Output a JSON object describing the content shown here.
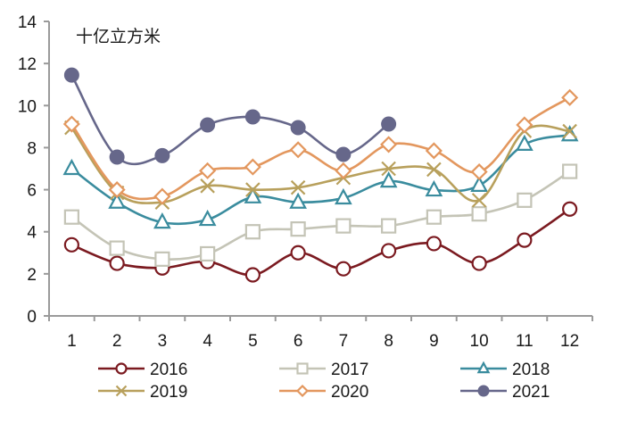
{
  "chart_data": {
    "type": "line",
    "title": "",
    "unit_label": "十亿立方米",
    "xlabel": "",
    "ylabel": "",
    "ylim": [
      0,
      14
    ],
    "yticks": [
      "0",
      "2",
      "4",
      "6",
      "8",
      "10",
      "12",
      "14"
    ],
    "ytick_values": [
      0,
      2,
      4,
      6,
      8,
      10,
      12,
      14
    ],
    "categories": [
      "1",
      "2",
      "3",
      "4",
      "5",
      "6",
      "7",
      "8",
      "9",
      "10",
      "11",
      "12"
    ],
    "grid": false,
    "smooth": true,
    "legend_position": "bottom",
    "series": [
      {
        "name": "2016",
        "marker": "circle-open",
        "color": "#7b1a20",
        "values": [
          3.38,
          2.5,
          2.28,
          2.58,
          1.95,
          3.0,
          2.24,
          3.1,
          3.44,
          2.5,
          3.6,
          5.08
        ]
      },
      {
        "name": "2017",
        "marker": "square-open",
        "color": "#c4c4b6",
        "values": [
          4.7,
          3.22,
          2.7,
          2.95,
          4.0,
          4.13,
          4.28,
          4.28,
          4.7,
          4.85,
          5.5,
          6.87
        ]
      },
      {
        "name": "2018",
        "marker": "triangle-open",
        "color": "#3a8c9e",
        "values": [
          7.0,
          5.4,
          4.45,
          4.58,
          5.65,
          5.4,
          5.6,
          6.4,
          5.98,
          6.2,
          8.15,
          8.6
        ]
      },
      {
        "name": "2019",
        "marker": "x",
        "color": "#b8a05c",
        "values": [
          8.95,
          5.85,
          5.4,
          6.18,
          6.0,
          6.1,
          6.57,
          7.0,
          6.96,
          5.5,
          8.8,
          8.78
        ]
      },
      {
        "name": "2020",
        "marker": "diamond-open",
        "color": "#e3975e",
        "values": [
          9.12,
          6.0,
          5.68,
          6.9,
          7.08,
          7.9,
          6.9,
          8.15,
          7.85,
          6.85,
          9.08,
          10.38
        ]
      },
      {
        "name": "2021",
        "marker": "circle-filled",
        "color": "#66678a",
        "values": [
          11.45,
          7.55,
          7.62,
          9.08,
          9.46,
          8.95,
          7.68,
          9.12
        ]
      }
    ]
  }
}
